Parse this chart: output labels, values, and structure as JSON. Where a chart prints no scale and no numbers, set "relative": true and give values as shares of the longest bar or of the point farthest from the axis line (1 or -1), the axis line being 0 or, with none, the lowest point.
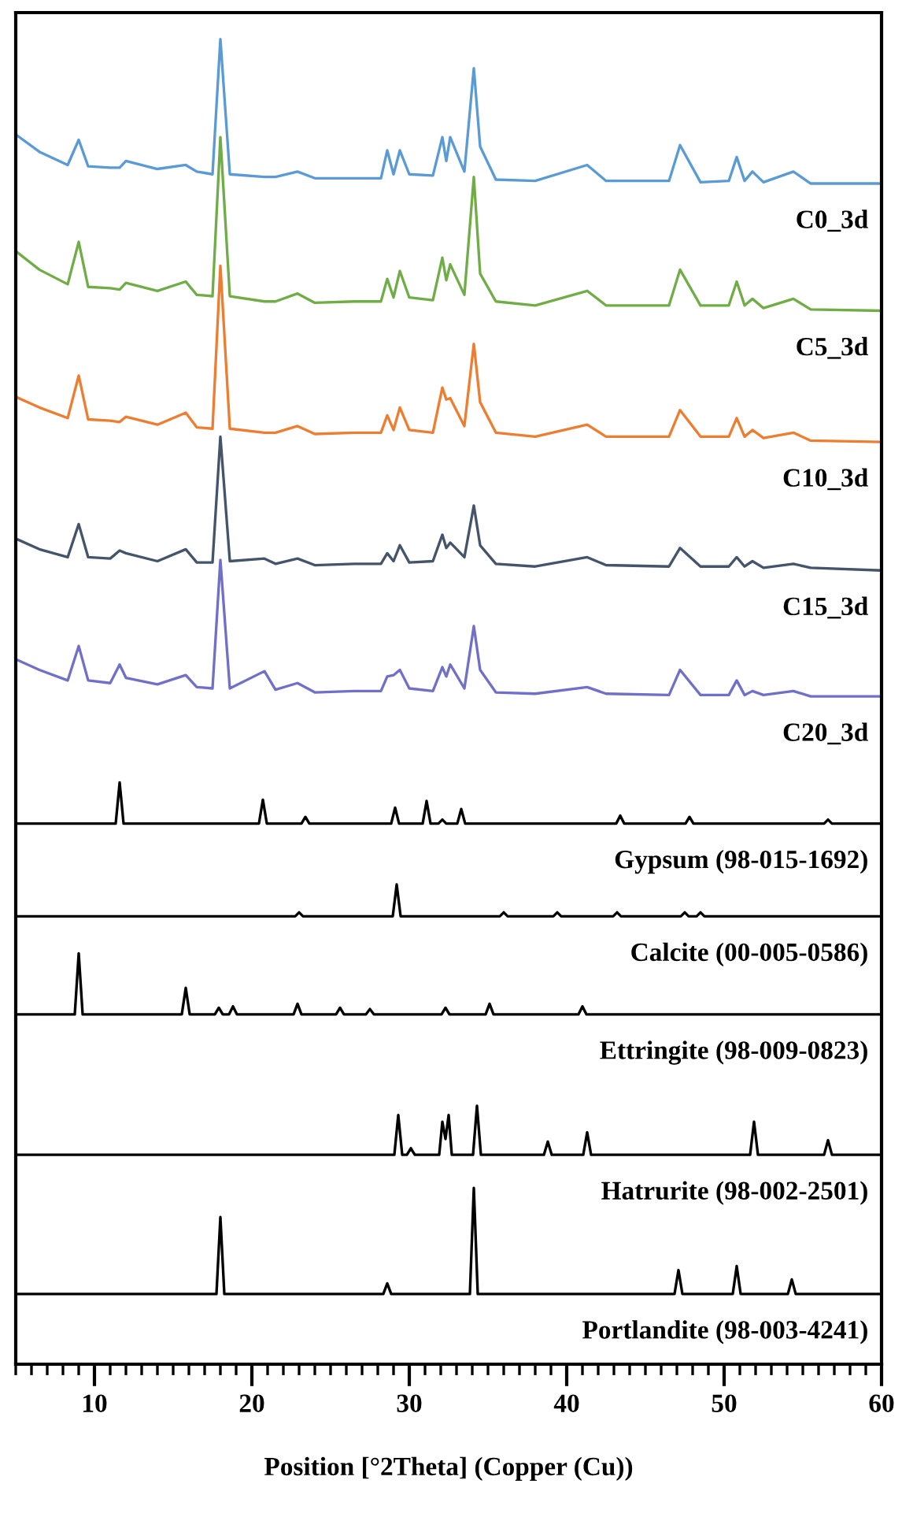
{
  "chart_data": {
    "type": "line",
    "relative": true,
    "xlabel": "Position [°2Theta] (Copper (Cu))",
    "xlim": [
      5,
      60
    ],
    "xticks": [
      10,
      20,
      30,
      40,
      50,
      60
    ],
    "legend": false,
    "grid": false,
    "marker": "none",
    "line_style": "solid",
    "x": [
      5,
      6.5,
      8.3,
      9.0,
      9.6,
      11,
      11.6,
      12.0,
      14,
      15.8,
      16.5,
      17.5,
      18.0,
      18.6,
      20.8,
      21.5,
      22.9,
      24,
      26.5,
      28.2,
      28.6,
      29.0,
      29.4,
      30.0,
      31.5,
      32.1,
      32.35,
      32.6,
      33.5,
      34.1,
      34.5,
      35.5,
      38,
      41.3,
      42.5,
      46.5,
      47.2,
      48.5,
      50.3,
      50.8,
      51.3,
      51.8,
      52.5,
      54.4,
      55.5,
      60
    ],
    "series": [
      {
        "name": "C0_3d",
        "color": "#5b9bd5",
        "values": [
          0.928,
          0.915,
          0.905,
          0.924,
          0.904,
          0.903,
          0.903,
          0.908,
          0.902,
          0.905,
          0.9,
          0.898,
          1,
          0.898,
          0.896,
          0.896,
          0.9,
          0.895,
          0.895,
          0.895,
          0.916,
          0.898,
          0.916,
          0.898,
          0.897,
          0.926,
          0.908,
          0.926,
          0.9,
          0.978,
          0.919,
          0.894,
          0.893,
          0.905,
          0.893,
          0.893,
          0.92,
          0.892,
          0.893,
          0.911,
          0.893,
          0.9,
          0.892,
          0.9,
          0.891,
          0.891
        ]
      },
      {
        "name": "C5_3d",
        "color": "#70ad47",
        "values": [
          0.84,
          0.826,
          0.815,
          0.847,
          0.813,
          0.812,
          0.811,
          0.816,
          0.81,
          0.817,
          0.807,
          0.806,
          0.926,
          0.806,
          0.802,
          0.802,
          0.808,
          0.801,
          0.802,
          0.802,
          0.819,
          0.805,
          0.825,
          0.805,
          0.803,
          0.835,
          0.818,
          0.83,
          0.807,
          0.896,
          0.823,
          0.802,
          0.799,
          0.81,
          0.799,
          0.799,
          0.826,
          0.799,
          0.799,
          0.817,
          0.799,
          0.804,
          0.797,
          0.804,
          0.796,
          0.795
        ]
      },
      {
        "name": "C10_3d",
        "color": "#ed7d31",
        "values": [
          0.73,
          0.722,
          0.714,
          0.746,
          0.713,
          0.712,
          0.711,
          0.715,
          0.709,
          0.718,
          0.707,
          0.706,
          0.829,
          0.706,
          0.703,
          0.703,
          0.708,
          0.702,
          0.703,
          0.703,
          0.716,
          0.705,
          0.722,
          0.705,
          0.703,
          0.737,
          0.728,
          0.729,
          0.708,
          0.77,
          0.726,
          0.703,
          0.7,
          0.709,
          0.7,
          0.7,
          0.72,
          0.7,
          0.7,
          0.714,
          0.7,
          0.705,
          0.699,
          0.703,
          0.697,
          0.696
        ]
      },
      {
        "name": "C15_3d",
        "color": "#44546a",
        "values": [
          0.623,
          0.615,
          0.609,
          0.634,
          0.609,
          0.608,
          0.614,
          0.612,
          0.606,
          0.615,
          0.605,
          0.605,
          0.7,
          0.606,
          0.608,
          0.604,
          0.608,
          0.603,
          0.604,
          0.604,
          0.612,
          0.606,
          0.618,
          0.605,
          0.606,
          0.626,
          0.616,
          0.62,
          0.609,
          0.648,
          0.618,
          0.604,
          0.602,
          0.609,
          0.603,
          0.602,
          0.616,
          0.602,
          0.602,
          0.609,
          0.602,
          0.606,
          0.601,
          0.604,
          0.601,
          0.599
        ]
      },
      {
        "name": "C20_3d",
        "color": "#7070c8",
        "values": [
          0.532,
          0.524,
          0.516,
          0.542,
          0.516,
          0.514,
          0.528,
          0.518,
          0.513,
          0.52,
          0.511,
          0.51,
          0.607,
          0.51,
          0.523,
          0.509,
          0.514,
          0.507,
          0.508,
          0.508,
          0.519,
          0.52,
          0.524,
          0.51,
          0.508,
          0.526,
          0.519,
          0.528,
          0.51,
          0.557,
          0.524,
          0.507,
          0.506,
          0.511,
          0.506,
          0.505,
          0.524,
          0.505,
          0.505,
          0.516,
          0.505,
          0.508,
          0.505,
          0.508,
          0.504,
          0.504
        ]
      },
      {
        "name": "Gypsum (98-015-1692)",
        "color": "#000000",
        "x": [
          5,
          11.35,
          11.6,
          11.85,
          20.45,
          20.7,
          20.95,
          23.15,
          23.4,
          23.65,
          28.85,
          29.1,
          29.35,
          30.85,
          31.1,
          31.35,
          31.85,
          32.1,
          32.35,
          33.05,
          33.3,
          33.55,
          43.15,
          43.4,
          43.65,
          47.55,
          47.8,
          48.05,
          56.35,
          56.6,
          56.85,
          60
        ],
        "values": [
          0.408,
          0.408,
          0.439,
          0.408,
          0.408,
          0.426,
          0.408,
          0.408,
          0.413,
          0.408,
          0.408,
          0.42,
          0.408,
          0.408,
          0.425,
          0.408,
          0.408,
          0.411,
          0.408,
          0.408,
          0.419,
          0.408,
          0.408,
          0.414,
          0.408,
          0.408,
          0.413,
          0.408,
          0.408,
          0.411,
          0.408,
          0.408
        ]
      },
      {
        "name": "Calcite (00-005-0586)",
        "color": "#000000",
        "x": [
          5,
          22.75,
          23.0,
          23.25,
          28.95,
          29.2,
          29.45,
          35.75,
          36.0,
          36.25,
          39.15,
          39.4,
          39.65,
          42.95,
          43.2,
          43.45,
          47.25,
          47.5,
          47.75,
          48.25,
          48.5,
          48.75,
          60
        ],
        "values": [
          0.338,
          0.338,
          0.341,
          0.338,
          0.338,
          0.362,
          0.338,
          0.338,
          0.341,
          0.338,
          0.338,
          0.341,
          0.338,
          0.338,
          0.341,
          0.338,
          0.338,
          0.341,
          0.338,
          0.338,
          0.341,
          0.338,
          0.338
        ]
      },
      {
        "name": "Ettringite (98-009-0823)",
        "color": "#000000",
        "x": [
          5,
          8.75,
          9.0,
          9.25,
          15.55,
          15.8,
          16.05,
          17.65,
          17.9,
          18.15,
          18.55,
          18.8,
          19.05,
          22.65,
          22.9,
          23.15,
          25.35,
          25.6,
          25.85,
          27.25,
          27.5,
          27.75,
          32.05,
          32.3,
          32.55,
          34.85,
          35.1,
          35.35,
          40.75,
          41.0,
          41.25,
          60
        ],
        "values": [
          0.264,
          0.264,
          0.31,
          0.264,
          0.264,
          0.284,
          0.264,
          0.264,
          0.269,
          0.264,
          0.264,
          0.27,
          0.264,
          0.264,
          0.272,
          0.264,
          0.264,
          0.269,
          0.264,
          0.264,
          0.268,
          0.264,
          0.264,
          0.269,
          0.264,
          0.264,
          0.272,
          0.264,
          0.264,
          0.27,
          0.264,
          0.264
        ]
      },
      {
        "name": "Hatrurite (98-002-2501)",
        "color": "#000000",
        "x": [
          5,
          29.05,
          29.3,
          29.55,
          29.85,
          30.1,
          30.35,
          31.9,
          32.1,
          32.3,
          32.5,
          32.7,
          34.05,
          34.3,
          34.55,
          38.55,
          38.8,
          39.05,
          41.05,
          41.3,
          41.55,
          51.65,
          51.9,
          52.15,
          56.35,
          56.6,
          56.85,
          60
        ],
        "values": [
          0.158,
          0.158,
          0.188,
          0.158,
          0.158,
          0.163,
          0.158,
          0.158,
          0.183,
          0.17,
          0.188,
          0.158,
          0.158,
          0.195,
          0.158,
          0.158,
          0.168,
          0.158,
          0.158,
          0.175,
          0.158,
          0.158,
          0.183,
          0.158,
          0.158,
          0.169,
          0.158,
          0.158
        ]
      },
      {
        "name": "Portlandite (98-003-4241)",
        "color": "#000000",
        "x": [
          5,
          17.75,
          18.0,
          18.25,
          28.35,
          28.6,
          28.85,
          33.85,
          34.1,
          34.35,
          46.85,
          47.1,
          47.35,
          50.55,
          50.8,
          51.05,
          54.05,
          54.3,
          54.55,
          60
        ],
        "values": [
          0.053,
          0.053,
          0.111,
          0.053,
          0.053,
          0.061,
          0.053,
          0.053,
          0.133,
          0.053,
          0.053,
          0.071,
          0.053,
          0.053,
          0.074,
          0.053,
          0.053,
          0.064,
          0.053,
          0.053
        ]
      }
    ]
  }
}
